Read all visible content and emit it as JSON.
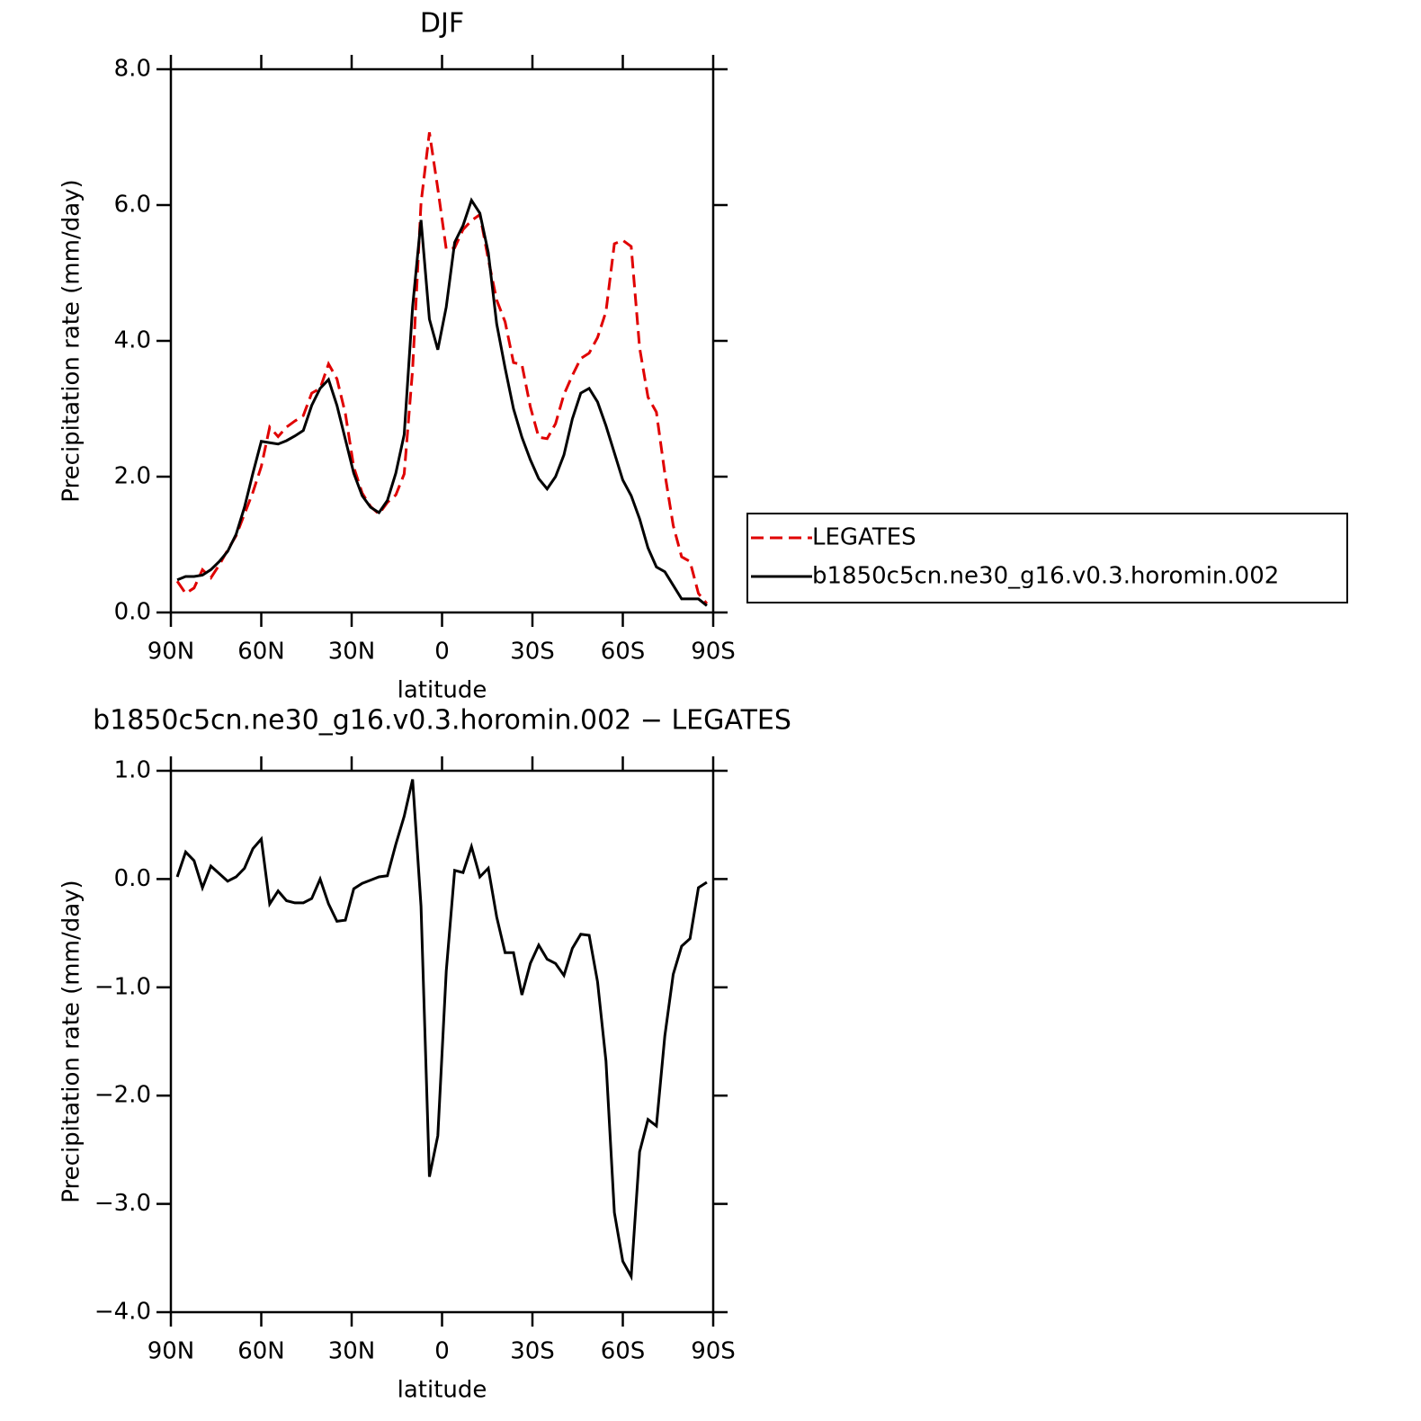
{
  "chart_data": [
    {
      "type": "line",
      "title": "DJF",
      "xlabel": "latitude",
      "ylabel": "Precipitation rate (mm/day)",
      "xlim": [
        90,
        -90
      ],
      "xticks": [
        {
          "value": 90,
          "label": "90N"
        },
        {
          "value": 60,
          "label": "60N"
        },
        {
          "value": 30,
          "label": "30N"
        },
        0,
        {
          "value": -30,
          "label": "30S"
        },
        {
          "value": -60,
          "label": "60S"
        },
        {
          "value": -90,
          "label": "90S"
        }
      ],
      "ylim": [
        0,
        8
      ],
      "yticks": [
        {
          "value": 0,
          "label": "0.0"
        },
        {
          "value": 2,
          "label": "2.0"
        },
        {
          "value": 4,
          "label": "4.0"
        },
        {
          "value": 6,
          "label": "6.0"
        },
        {
          "value": 8,
          "label": "8.0"
        }
      ],
      "legend": "right",
      "x": [
        87.89,
        85.1,
        82.31,
        79.52,
        76.73,
        73.94,
        71.15,
        68.36,
        65.57,
        62.78,
        59.99,
        57.2,
        54.41,
        51.62,
        48.83,
        46.04,
        43.25,
        40.46,
        37.67,
        34.88,
        32.09,
        29.3,
        26.51,
        23.72,
        20.93,
        18.14,
        15.35,
        12.56,
        9.77,
        6.98,
        4.19,
        1.4,
        -1.4,
        -4.19,
        -6.98,
        -9.77,
        -12.56,
        -15.35,
        -18.14,
        -20.93,
        -23.72,
        -26.51,
        -29.3,
        -32.09,
        -34.88,
        -37.67,
        -40.46,
        -43.25,
        -46.04,
        -48.83,
        -51.62,
        -54.41,
        -57.2,
        -59.99,
        -62.78,
        -65.57,
        -68.36,
        -71.15,
        -73.94,
        -76.73,
        -79.52,
        -82.31,
        -85.1,
        -87.89
      ],
      "series": [
        {
          "name": "LEGATES",
          "color": "#e00000",
          "dash": true,
          "values": [
            0.46,
            0.28,
            0.36,
            0.63,
            0.51,
            0.7,
            0.92,
            1.13,
            1.45,
            1.77,
            2.15,
            2.73,
            2.59,
            2.73,
            2.82,
            2.9,
            3.23,
            3.3,
            3.66,
            3.44,
            2.93,
            2.14,
            1.76,
            1.56,
            1.45,
            1.62,
            1.73,
            2.04,
            3.58,
            6.03,
            7.07,
            6.24,
            5.35,
            5.37,
            5.64,
            5.77,
            5.86,
            5.2,
            4.6,
            4.28,
            3.68,
            3.65,
            3.03,
            2.58,
            2.56,
            2.78,
            3.21,
            3.49,
            3.74,
            3.82,
            4.05,
            4.43,
            5.43,
            5.48,
            5.39,
            3.9,
            3.17,
            2.95,
            2.05,
            1.28,
            0.82,
            0.75,
            0.28,
            0.13
          ]
        },
        {
          "name": "b1850c5cn.ne30_g16.v0.3.horomin.002",
          "color": "#000000",
          "dash": false,
          "values": [
            0.48,
            0.53,
            0.53,
            0.55,
            0.63,
            0.75,
            0.9,
            1.15,
            1.55,
            2.05,
            2.52,
            2.5,
            2.48,
            2.53,
            2.6,
            2.68,
            3.05,
            3.3,
            3.43,
            3.05,
            2.55,
            2.05,
            1.72,
            1.55,
            1.47,
            1.65,
            2.05,
            2.62,
            4.5,
            5.78,
            4.32,
            3.87,
            4.5,
            5.45,
            5.7,
            6.07,
            5.88,
            5.3,
            4.25,
            3.6,
            3.0,
            2.58,
            2.25,
            1.97,
            1.82,
            2.0,
            2.32,
            2.85,
            3.23,
            3.3,
            3.1,
            2.75,
            2.35,
            1.95,
            1.72,
            1.38,
            0.95,
            0.67,
            0.6,
            0.4,
            0.2,
            0.2,
            0.2,
            0.1
          ]
        }
      ]
    },
    {
      "type": "line",
      "title": "b1850c5cn.ne30_g16.v0.3.horomin.002 − LEGATES",
      "xlabel": "latitude",
      "ylabel": "Precipitation rate (mm/day)",
      "xlim": [
        90,
        -90
      ],
      "xticks": [
        {
          "value": 90,
          "label": "90N"
        },
        {
          "value": 60,
          "label": "60N"
        },
        {
          "value": 30,
          "label": "30N"
        },
        0,
        {
          "value": -30,
          "label": "30S"
        },
        {
          "value": -60,
          "label": "60S"
        },
        {
          "value": -90,
          "label": "90S"
        }
      ],
      "ylim": [
        -4,
        1
      ],
      "yticks": [
        {
          "value": 1,
          "label": "1.0"
        },
        {
          "value": 0,
          "label": "0.0"
        },
        {
          "value": -1,
          "label": "−1.0"
        },
        {
          "value": -2,
          "label": "−2.0"
        },
        {
          "value": -3,
          "label": "−3.0"
        },
        {
          "value": -4,
          "label": "−4.0"
        }
      ],
      "color": "#000000",
      "x": [
        87.89,
        85.1,
        82.31,
        79.52,
        76.73,
        73.94,
        71.15,
        68.36,
        65.57,
        62.78,
        59.99,
        57.2,
        54.41,
        51.62,
        48.83,
        46.04,
        43.25,
        40.46,
        37.67,
        34.88,
        32.09,
        29.3,
        26.51,
        23.72,
        20.93,
        18.14,
        15.35,
        12.56,
        9.77,
        6.98,
        4.19,
        1.4,
        -1.4,
        -4.19,
        -6.98,
        -9.77,
        -12.56,
        -15.35,
        -18.14,
        -20.93,
        -23.72,
        -26.51,
        -29.3,
        -32.09,
        -34.88,
        -37.67,
        -40.46,
        -43.25,
        -46.04,
        -48.83,
        -51.62,
        -54.41,
        -57.2,
        -59.99,
        -62.78,
        -65.57,
        -68.36,
        -71.15,
        -73.94,
        -76.73,
        -79.52,
        -82.31,
        -85.1,
        -87.89
      ],
      "values": [
        0.02,
        0.25,
        0.17,
        -0.08,
        0.12,
        0.05,
        -0.02,
        0.02,
        0.1,
        0.28,
        0.37,
        -0.23,
        -0.11,
        -0.2,
        -0.22,
        -0.22,
        -0.18,
        0.0,
        -0.23,
        -0.39,
        -0.38,
        -0.09,
        -0.04,
        -0.01,
        0.02,
        0.03,
        0.32,
        0.58,
        0.92,
        -0.25,
        -2.75,
        -2.37,
        -0.85,
        0.08,
        0.06,
        0.3,
        0.02,
        0.1,
        -0.35,
        -0.68,
        -0.68,
        -1.07,
        -0.78,
        -0.61,
        -0.74,
        -0.78,
        -0.89,
        -0.64,
        -0.51,
        -0.52,
        -0.95,
        -1.68,
        -3.08,
        -3.53,
        -3.67,
        -2.52,
        -2.22,
        -2.28,
        -1.45,
        -0.88,
        -0.62,
        -0.55,
        -0.08,
        -0.03
      ]
    }
  ]
}
